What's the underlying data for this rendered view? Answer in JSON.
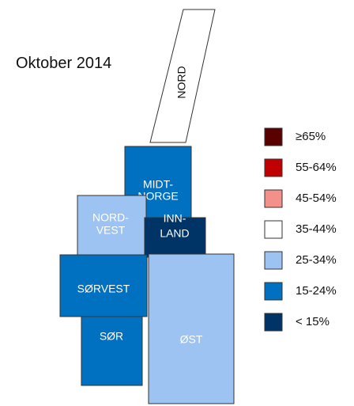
{
  "title": "Oktober 2014",
  "regions": [
    {
      "label": [
        "NORD"
      ],
      "color": "#ffffff"
    },
    {
      "label": [
        "MIDT-",
        "NORGE"
      ],
      "color": "#0070c0"
    },
    {
      "label": [
        "NORD-",
        "VEST"
      ],
      "color": "#9dc3f2"
    },
    {
      "label": [
        "INN-",
        "LAND"
      ],
      "color": "#003366"
    },
    {
      "label": [
        "SØRVEST"
      ],
      "color": "#0070c0"
    },
    {
      "label": [
        "SØR"
      ],
      "color": "#0070c0"
    },
    {
      "label": [
        "ØST"
      ],
      "color": "#9dc3f2"
    }
  ],
  "legend": [
    {
      "label": "≥65%",
      "color": "#5a0000"
    },
    {
      "label": "55-64%",
      "color": "#c00000"
    },
    {
      "label": "45-54%",
      "color": "#f4908a"
    },
    {
      "label": "35-44%",
      "color": "#ffffff"
    },
    {
      "label": "25-34%",
      "color": "#9dc3f2"
    },
    {
      "label": "15-24%",
      "color": "#0070c0"
    },
    {
      "label": "< 15%",
      "color": "#003366"
    }
  ]
}
